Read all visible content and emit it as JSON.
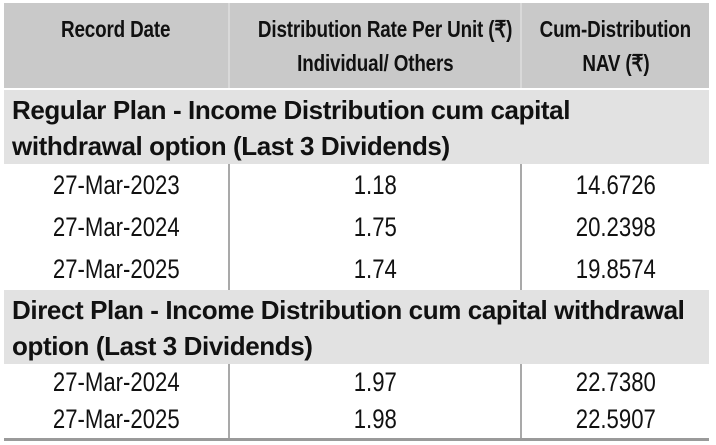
{
  "table": {
    "header": {
      "col1": "Record Date",
      "col2_line1": "Distribution Rate Per Unit (₹)",
      "col2_line2": "Individual/ Others",
      "col3_line1": "Cum-Distribution",
      "col3_line2": "NAV (₹)",
      "currency_symbol": "₹"
    },
    "sections": [
      {
        "title": "Regular Plan - Income Distribution cum capital withdrawal option (Last 3 Dividends)",
        "rows": [
          {
            "record_date": "27-Mar-2023",
            "rate": "1.18",
            "nav": "14.6726"
          },
          {
            "record_date": "27-Mar-2024",
            "rate": "1.75",
            "nav": "20.2398"
          },
          {
            "record_date": "27-Mar-2025",
            "rate": "1.74",
            "nav": "19.8574"
          }
        ]
      },
      {
        "title": "Direct Plan - Income Distribution cum capital withdrawal option (Last 3 Dividends)",
        "rows": [
          {
            "record_date": "27-Mar-2024",
            "rate": "1.97",
            "nav": "22.7380"
          },
          {
            "record_date": "27-Mar-2025",
            "rate": "1.98",
            "nav": "22.5907"
          }
        ]
      }
    ]
  },
  "colors": {
    "header_bg": "#c9c9c9",
    "header_divider": "#d9d9d9",
    "section_bg": "#e2e2e2",
    "row_bg": "#ffffff",
    "row_divider": "#a9a9a9",
    "bottom_border": "#9a9a9a",
    "text": "#111111"
  }
}
